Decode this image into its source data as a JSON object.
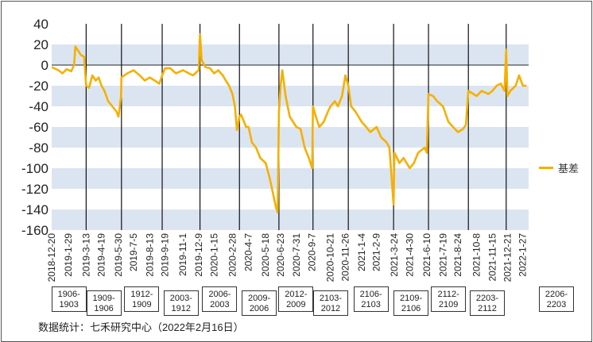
{
  "chart_data": {
    "type": "line",
    "series": [
      {
        "name": "基差",
        "color": "#f5b000",
        "points": [
          [
            "2018-12-20",
            -2
          ],
          [
            "2019-01-05",
            -5
          ],
          [
            "2019-01-15",
            -8
          ],
          [
            "2019-01-25",
            -4
          ],
          [
            "2019-02-05",
            -6
          ],
          [
            "2019-02-12",
            0
          ],
          [
            "2019-02-15",
            18
          ],
          [
            "2019-02-20",
            15
          ],
          [
            "2019-02-28",
            10
          ],
          [
            "2019-03-08",
            8
          ],
          [
            "2019-03-13",
            -20
          ],
          [
            "2019-03-20",
            -22
          ],
          [
            "2019-03-28",
            -10
          ],
          [
            "2019-04-05",
            -15
          ],
          [
            "2019-04-12",
            -12
          ],
          [
            "2019-04-19",
            -20
          ],
          [
            "2019-04-26",
            -25
          ],
          [
            "2019-05-05",
            -35
          ],
          [
            "2019-05-15",
            -40
          ],
          [
            "2019-05-25",
            -45
          ],
          [
            "2019-05-30",
            -50
          ],
          [
            "2019-06-05",
            -30
          ],
          [
            "2019-06-06",
            -12
          ],
          [
            "2019-06-20",
            -8
          ],
          [
            "2019-07-05",
            -5
          ],
          [
            "2019-07-20",
            -10
          ],
          [
            "2019-08-01",
            -15
          ],
          [
            "2019-08-13",
            -12
          ],
          [
            "2019-08-25",
            -15
          ],
          [
            "2019-09-05",
            -18
          ],
          [
            "2019-09-12",
            -10
          ],
          [
            "2019-09-19",
            -3
          ],
          [
            "2019-10-01",
            -3
          ],
          [
            "2019-10-15",
            -8
          ],
          [
            "2019-11-01",
            -5
          ],
          [
            "2019-11-15",
            -8
          ],
          [
            "2019-11-25",
            -10
          ],
          [
            "2019-12-09",
            -5
          ],
          [
            "2019-12-12",
            30
          ],
          [
            "2019-12-16",
            5
          ],
          [
            "2019-12-25",
            -2
          ],
          [
            "2020-01-05",
            -3
          ],
          [
            "2020-01-15",
            -8
          ],
          [
            "2020-01-25",
            -5
          ],
          [
            "2020-02-05",
            -10
          ],
          [
            "2020-02-12",
            -15
          ],
          [
            "2020-02-20",
            -20
          ],
          [
            "2020-02-28",
            -28
          ],
          [
            "2020-03-05",
            -40
          ],
          [
            "2020-03-10",
            -63
          ],
          [
            "2020-03-16",
            -50
          ],
          [
            "2020-03-20",
            -48
          ],
          [
            "2020-04-01",
            -60
          ],
          [
            "2020-04-07",
            -60
          ],
          [
            "2020-04-15",
            -75
          ],
          [
            "2020-04-25",
            -80
          ],
          [
            "2020-05-05",
            -90
          ],
          [
            "2020-05-18",
            -95
          ],
          [
            "2020-05-28",
            -110
          ],
          [
            "2020-06-05",
            -125
          ],
          [
            "2020-06-12",
            -138
          ],
          [
            "2020-06-16",
            -143
          ],
          [
            "2020-06-19",
            -45
          ],
          [
            "2020-06-23",
            -20
          ],
          [
            "2020-06-27",
            -5
          ],
          [
            "2020-07-05",
            -30
          ],
          [
            "2020-07-15",
            -50
          ],
          [
            "2020-07-31",
            -60
          ],
          [
            "2020-08-10",
            -62
          ],
          [
            "2020-08-20",
            -80
          ],
          [
            "2020-08-30",
            -90
          ],
          [
            "2020-09-07",
            -100
          ],
          [
            "2020-09-09",
            -40
          ],
          [
            "2020-09-16",
            -50
          ],
          [
            "2020-09-24",
            -60
          ],
          [
            "2020-10-05",
            -55
          ],
          [
            "2020-10-15",
            -45
          ],
          [
            "2020-10-21",
            -40
          ],
          [
            "2020-11-01",
            -35
          ],
          [
            "2020-11-08",
            -40
          ],
          [
            "2020-11-18",
            -30
          ],
          [
            "2020-11-26",
            -10
          ],
          [
            "2020-12-03",
            -20
          ],
          [
            "2020-12-10",
            -40
          ],
          [
            "2020-12-20",
            -45
          ],
          [
            "2021-01-04",
            -55
          ],
          [
            "2021-01-15",
            -60
          ],
          [
            "2021-01-25",
            -65
          ],
          [
            "2021-02-09",
            -60
          ],
          [
            "2021-02-20",
            -70
          ],
          [
            "2021-03-05",
            -75
          ],
          [
            "2021-03-12",
            -80
          ],
          [
            "2021-03-22",
            -135
          ],
          [
            "2021-03-24",
            -85
          ],
          [
            "2021-04-05",
            -95
          ],
          [
            "2021-04-15",
            -90
          ],
          [
            "2021-04-30",
            -100
          ],
          [
            "2021-05-10",
            -95
          ],
          [
            "2021-05-20",
            -85
          ],
          [
            "2021-06-05",
            -80
          ],
          [
            "2021-06-10",
            -85
          ],
          [
            "2021-06-14",
            -28
          ],
          [
            "2021-06-25",
            -30
          ],
          [
            "2021-07-05",
            -35
          ],
          [
            "2021-07-19",
            -40
          ],
          [
            "2021-08-01",
            -55
          ],
          [
            "2021-08-12",
            -60
          ],
          [
            "2021-08-24",
            -65
          ],
          [
            "2021-09-05",
            -62
          ],
          [
            "2021-09-12",
            -58
          ],
          [
            "2021-09-18",
            -25
          ],
          [
            "2021-10-08",
            -30
          ],
          [
            "2021-10-20",
            -25
          ],
          [
            "2021-11-05",
            -28
          ],
          [
            "2021-11-15",
            -25
          ],
          [
            "2021-11-25",
            -20
          ],
          [
            "2021-12-05",
            -18
          ],
          [
            "2021-12-14",
            -25
          ],
          [
            "2021-12-18",
            15
          ],
          [
            "2021-12-21",
            -30
          ],
          [
            "2021-12-28",
            -25
          ],
          [
            "2022-01-10",
            -20
          ],
          [
            "2022-01-18",
            -10
          ],
          [
            "2022-01-27",
            -20
          ],
          [
            "2022-02-05",
            -20
          ]
        ]
      }
    ],
    "y_ticks": [
      "40",
      "20",
      "0",
      "-20",
      "-40",
      "-60",
      "-80",
      "-100",
      "-120",
      "-140",
      "-160"
    ],
    "ylim": [
      -160,
      40
    ],
    "x_tick_labels": [
      "2018-12-20",
      "2019-1-29",
      "2019-3-13",
      "2019-4-19",
      "2019-5-30",
      "2019-7-5",
      "2019-8-13",
      "2019-9-19",
      "2019-11-1",
      "2019-12-9",
      "2020-1-15",
      "2020-2-28",
      "2020-4-7",
      "2020-5-18",
      "2020-6-23",
      "2020-7-31",
      "2020-9-7",
      "2020-10-21",
      "2020-11-26",
      "2021-1-4",
      "2021-2-9",
      "2021-3-24",
      "2021-4-30",
      "2021-6-10",
      "2021-7-19",
      "2021-8-24",
      "2021-10-8",
      "2021-11-15",
      "2021-12-21",
      "2022-1-27"
    ],
    "x_tick_dates": [
      "2018-12-20",
      "2019-01-29",
      "2019-03-13",
      "2019-04-19",
      "2019-05-30",
      "2019-07-05",
      "2019-08-13",
      "2019-09-19",
      "2019-11-01",
      "2019-12-09",
      "2020-01-15",
      "2020-02-28",
      "2020-04-07",
      "2020-05-18",
      "2020-06-23",
      "2020-07-31",
      "2020-09-07",
      "2020-10-21",
      "2020-11-26",
      "2021-01-04",
      "2021-02-09",
      "2021-03-24",
      "2021-04-30",
      "2021-06-10",
      "2021-07-19",
      "2021-08-24",
      "2021-10-08",
      "2021-11-15",
      "2021-12-21",
      "2022-01-27"
    ],
    "contract_periods": [
      {
        "label": "1906-\n1903",
        "start": "2018-12-20",
        "end": "2019-03-13"
      },
      {
        "label": "1909-\n1906",
        "start": "2019-03-13",
        "end": "2019-06-06"
      },
      {
        "label": "1912-\n1909",
        "start": "2019-06-06",
        "end": "2019-09-12"
      },
      {
        "label": "2003-\n1912",
        "start": "2019-09-12",
        "end": "2019-12-12"
      },
      {
        "label": "2006-\n2003",
        "start": "2019-12-12",
        "end": "2020-03-16"
      },
      {
        "label": "2009-\n2006",
        "start": "2020-03-16",
        "end": "2020-06-19"
      },
      {
        "label": "2012-\n2009",
        "start": "2020-06-19",
        "end": "2020-09-09"
      },
      {
        "label": "2103-\n2012",
        "start": "2020-09-09",
        "end": "2020-12-03"
      },
      {
        "label": "2106-\n2103",
        "start": "2020-12-03",
        "end": "2021-03-22"
      },
      {
        "label": "2109-\n2106",
        "start": "2021-03-22",
        "end": "2021-06-14"
      },
      {
        "label": "2112-\n2109",
        "start": "2021-06-14",
        "end": "2021-09-18"
      },
      {
        "label": "2203-\n2112",
        "start": "2021-09-18",
        "end": "2021-12-18"
      },
      {
        "label": "2206-\n2203",
        "start": "2021-12-18",
        "end": "2022-02-16"
      }
    ],
    "band_shading": true,
    "legend_position": "right"
  },
  "source_note": "数据统计：七禾研究中心（2022年2月16日）"
}
